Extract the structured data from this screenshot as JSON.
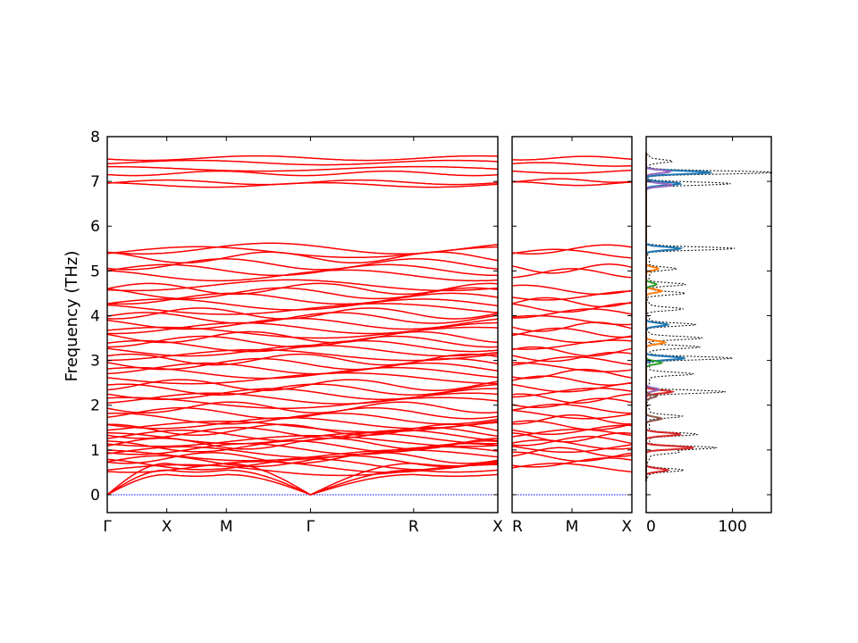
{
  "chart_data": [
    {
      "type": "line",
      "panel": "band-structure-main",
      "ylabel": "Frequency (THz)",
      "ylim": [
        -0.4,
        8
      ],
      "yticks": [
        0,
        1,
        2,
        3,
        4,
        5,
        6,
        7,
        8
      ],
      "xticks": [
        {
          "label": "Γ",
          "pos": 0.0
        },
        {
          "label": "X",
          "pos": 1.0
        },
        {
          "label": "M",
          "pos": 2.0
        },
        {
          "label": "Γ",
          "pos": 3.414
        },
        {
          "label": "R",
          "pos": 5.146
        },
        {
          "label": "X",
          "pos": 6.56
        }
      ],
      "xlim": [
        0,
        6.56
      ],
      "series_color": "#ff0000",
      "zero_line_color": "#0000ff",
      "segments": [
        {
          "from": "Γ",
          "to": "X",
          "x0": 0.0,
          "x1": 1.0,
          "start_factor": 0.0,
          "end_factor": 0.35
        },
        {
          "from": "X",
          "to": "M",
          "x0": 1.0,
          "x1": 2.0,
          "start_factor": 0.35,
          "end_factor": 0.5
        },
        {
          "from": "M",
          "to": "Γ",
          "x0": 2.0,
          "x1": 3.414,
          "start_factor": 0.5,
          "end_factor": 0.0
        },
        {
          "from": "Γ",
          "to": "R",
          "x0": 3.414,
          "x1": 5.146,
          "start_factor": 0.0,
          "end_factor": 0.6
        },
        {
          "from": "R",
          "to": "X",
          "x0": 5.146,
          "x1": 6.56,
          "start_factor": 0.6,
          "end_factor": 0.35
        }
      ],
      "acoustic_branches": [
        {
          "name": "",
          "zone_boundary_value": 0.7
        },
        {
          "name": "",
          "zone_boundary_value": 0.55
        },
        {
          "name": "",
          "zone_boundary_value": 0.45
        }
      ],
      "optical_base_values": [
        0.55,
        0.62,
        0.68,
        0.75,
        0.82,
        0.88,
        0.95,
        1.02,
        1.08,
        1.14,
        1.2,
        1.26,
        1.32,
        1.38,
        1.45,
        1.52,
        1.6,
        1.7,
        1.82,
        1.95,
        2.05,
        2.15,
        2.25,
        2.35,
        2.45,
        2.6,
        2.72,
        2.82,
        2.92,
        3.02,
        3.12,
        3.22,
        3.32,
        3.42,
        3.52,
        3.62,
        3.72,
        3.82,
        3.95,
        4.05,
        4.15,
        4.25,
        4.38,
        4.5,
        4.6,
        4.68,
        4.9,
        5.02,
        5.15,
        5.3,
        5.42,
        5.5,
        6.92,
        6.98,
        7.18,
        7.28,
        7.42,
        7.52
      ]
    },
    {
      "type": "line",
      "panel": "band-structure-side",
      "ylim": [
        -0.4,
        8
      ],
      "xticks": [
        {
          "label": "R",
          "pos": 0.0
        },
        {
          "label": "M",
          "pos": 1.0
        },
        {
          "label": "X",
          "pos": 2.0
        }
      ],
      "xlim": [
        0,
        2.0
      ],
      "series_color": "#ff0000",
      "zero_line_color": "#0000ff",
      "band_values": [
        0.6,
        0.72,
        0.85,
        0.95,
        1.05,
        1.12,
        1.2,
        1.28,
        1.36,
        1.45,
        1.55,
        1.68,
        1.8,
        1.92,
        2.05,
        2.15,
        2.28,
        2.4,
        2.55,
        2.7,
        2.85,
        2.98,
        3.08,
        3.2,
        3.35,
        3.5,
        3.62,
        3.75,
        3.9,
        4.05,
        4.18,
        4.3,
        4.45,
        4.58,
        4.95,
        5.05,
        5.38,
        5.48,
        6.95,
        7.02,
        7.22,
        7.38,
        7.52
      ]
    },
    {
      "type": "line",
      "panel": "density-of-states",
      "ylim": [
        -0.4,
        8
      ],
      "xlim": [
        0,
        145
      ],
      "xticks": [
        {
          "label": "0",
          "pos": 0
        },
        {
          "label": "100",
          "pos": 100
        }
      ],
      "total_dos_color": "#000000",
      "total_dos_peaks": [
        {
          "freq": 0.55,
          "height": 40
        },
        {
          "freq": 0.95,
          "height": 35
        },
        {
          "freq": 1.05,
          "height": 80
        },
        {
          "freq": 1.35,
          "height": 60
        },
        {
          "freq": 1.75,
          "height": 40
        },
        {
          "freq": 2.3,
          "height": 90
        },
        {
          "freq": 2.7,
          "height": 55
        },
        {
          "freq": 3.05,
          "height": 100
        },
        {
          "freq": 3.3,
          "height": 60
        },
        {
          "freq": 3.5,
          "height": 62
        },
        {
          "freq": 3.8,
          "height": 55
        },
        {
          "freq": 4.15,
          "height": 40
        },
        {
          "freq": 4.5,
          "height": 42
        },
        {
          "freq": 4.7,
          "height": 45
        },
        {
          "freq": 5.05,
          "height": 35
        },
        {
          "freq": 5.5,
          "height": 100
        },
        {
          "freq": 6.95,
          "height": 95
        },
        {
          "freq": 7.2,
          "height": 145
        },
        {
          "freq": 7.45,
          "height": 30
        }
      ],
      "partial_dos": [
        {
          "name": "",
          "color": "#1f77b4",
          "peaks": [
            {
              "freq": 3.05,
              "height": 45
            },
            {
              "freq": 3.8,
              "height": 25
            },
            {
              "freq": 5.5,
              "height": 40
            },
            {
              "freq": 6.95,
              "height": 40
            },
            {
              "freq": 7.2,
              "height": 75
            }
          ]
        },
        {
          "name": "",
          "color": "#ff7f0e",
          "peaks": [
            {
              "freq": 3.4,
              "height": 22
            },
            {
              "freq": 4.55,
              "height": 18
            },
            {
              "freq": 5.05,
              "height": 14
            }
          ]
        },
        {
          "name": "",
          "color": "#2ca02c",
          "peaks": [
            {
              "freq": 2.95,
              "height": 18
            },
            {
              "freq": 4.7,
              "height": 12
            }
          ]
        },
        {
          "name": "",
          "color": "#d62728",
          "peaks": [
            {
              "freq": 0.55,
              "height": 25
            },
            {
              "freq": 1.05,
              "height": 55
            },
            {
              "freq": 1.35,
              "height": 40
            },
            {
              "freq": 2.3,
              "height": 30
            }
          ]
        },
        {
          "name": "",
          "color": "#9467bd",
          "peaks": [
            {
              "freq": 2.35,
              "height": 15
            },
            {
              "freq": 6.92,
              "height": 30
            },
            {
              "freq": 7.22,
              "height": 28
            }
          ]
        },
        {
          "name": "",
          "color": "#8c564b",
          "peaks": [
            {
              "freq": 1.7,
              "height": 18
            },
            {
              "freq": 2.2,
              "height": 12
            }
          ]
        }
      ]
    }
  ]
}
